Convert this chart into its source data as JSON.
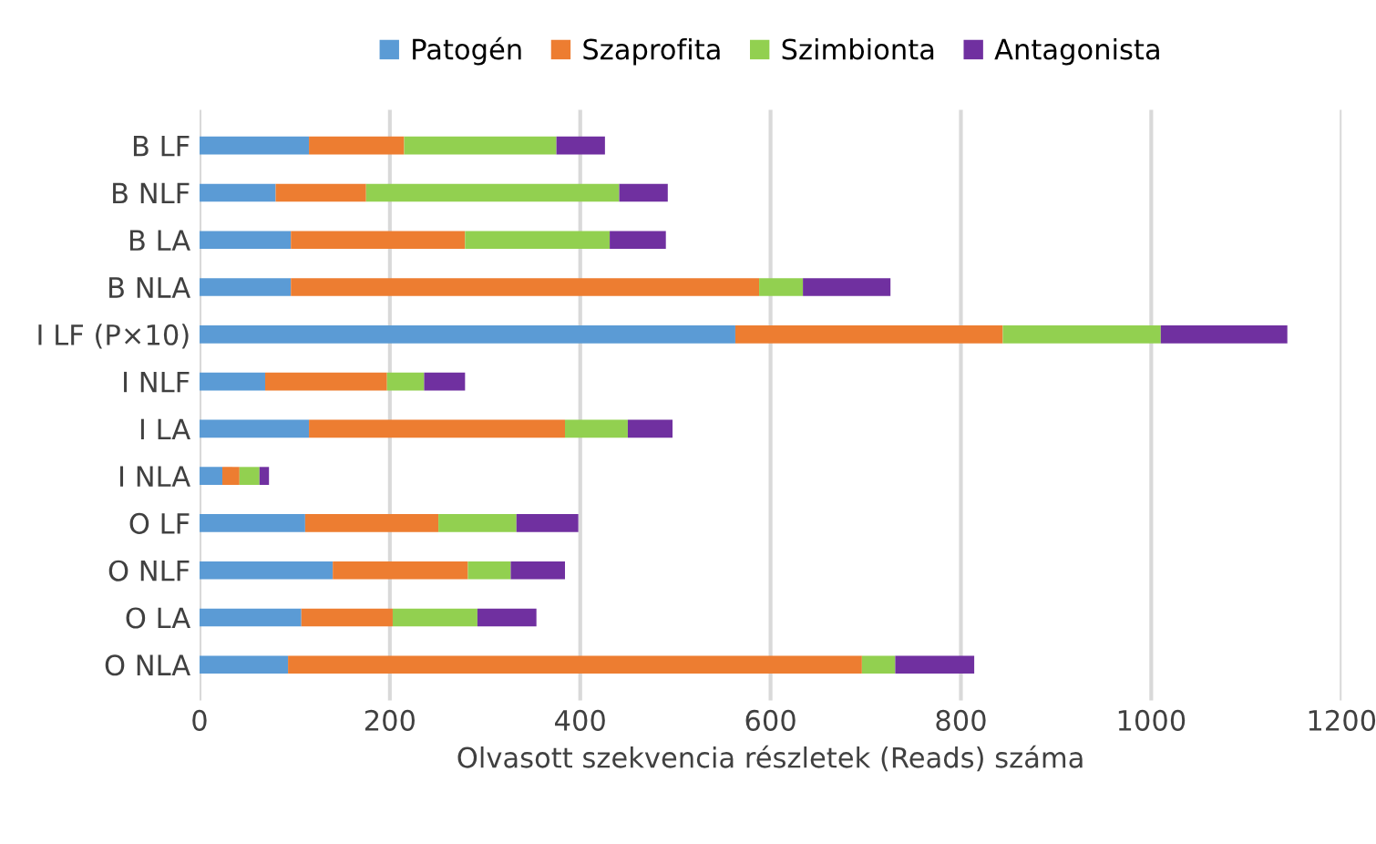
{
  "chart_data": {
    "type": "bar",
    "orientation": "horizontal",
    "stacked": true,
    "xlabel": "Olvasott szekvencia részletek (Reads) száma",
    "categories": [
      "B LF",
      "B NLF",
      "B LA",
      "B NLA",
      "I LF (P×10)",
      "I NLF",
      "I LA",
      "I NLA",
      "O LF",
      "O NLF",
      "O LA",
      "O NLA"
    ],
    "series": [
      {
        "name": "Patogén",
        "color": "#5b9bd5",
        "values": [
          115,
          80,
          96,
          96,
          563,
          69,
          115,
          24,
          111,
          140,
          107,
          93
        ]
      },
      {
        "name": "Szaprofita",
        "color": "#ed7d31",
        "values": [
          100,
          95,
          183,
          492,
          281,
          128,
          269,
          18,
          140,
          142,
          96,
          603
        ]
      },
      {
        "name": "Szimbionta",
        "color": "#92d050",
        "values": [
          160,
          266,
          152,
          46,
          166,
          39,
          66,
          21,
          82,
          45,
          89,
          35
        ]
      },
      {
        "name": "Antagonista",
        "color": "#7030a0",
        "values": [
          51,
          51,
          59,
          92,
          133,
          43,
          47,
          10,
          65,
          57,
          62,
          83
        ]
      }
    ],
    "xlim": [
      0,
      1200
    ],
    "xticks": [
      0,
      200,
      400,
      600,
      800,
      1000,
      1200
    ],
    "grid": "x",
    "legend": "top"
  }
}
